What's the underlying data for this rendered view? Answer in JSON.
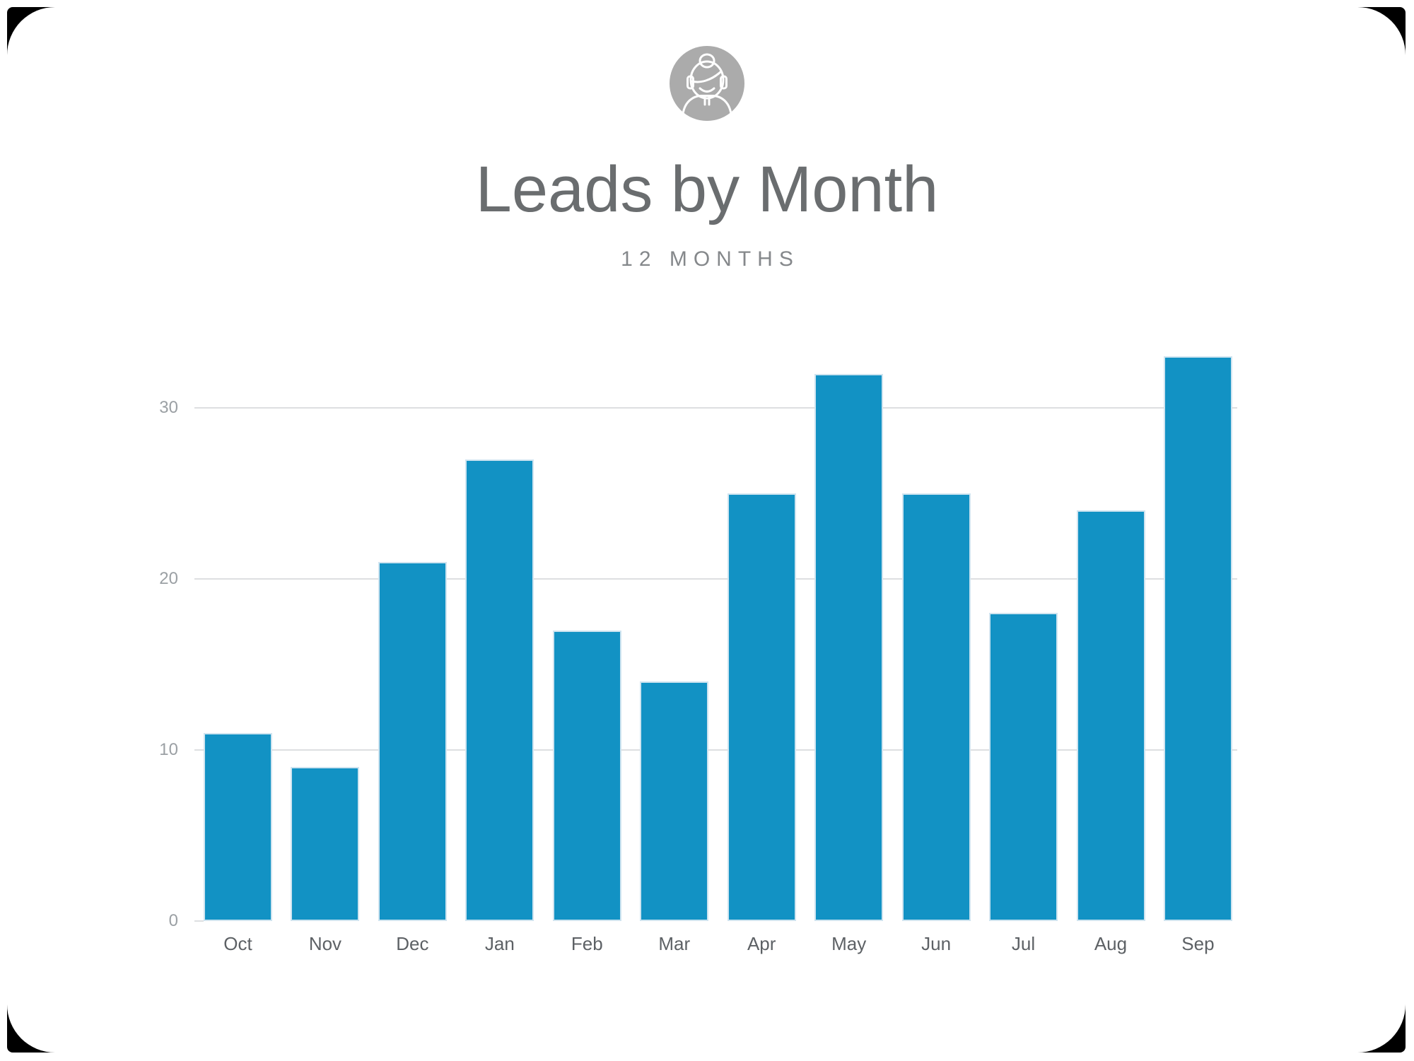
{
  "header": {
    "avatar_icon": "support-agent-icon",
    "title": "Leads by Month",
    "subtitle": "12 MONTHS"
  },
  "chart_data": {
    "type": "bar",
    "title": "Leads by Month",
    "subtitle": "12 MONTHS",
    "categories": [
      "Oct",
      "Nov",
      "Dec",
      "Jan",
      "Feb",
      "Mar",
      "Apr",
      "May",
      "Jun",
      "Jul",
      "Aug",
      "Sep"
    ],
    "values": [
      11,
      9,
      21,
      27,
      17,
      14,
      25,
      32,
      25,
      18,
      24,
      33
    ],
    "series_name": "Leads",
    "xlabel": "",
    "ylabel": "",
    "ylim": [
      0,
      35
    ],
    "yticks": [
      0,
      10,
      20,
      30
    ],
    "ytick_labels": [
      "0",
      "10",
      "20",
      "30"
    ],
    "grid": "horizontal",
    "legend": "none",
    "bar_color": "#1292c4"
  },
  "colors": {
    "background": "#ffffff",
    "corner_frame": "#000000",
    "bar": "#1292c4",
    "bar_edge": "#cfe4f0",
    "title_text": "#6a6d6f",
    "subtitle_text": "#85888b",
    "y_tick_text": "#9ba0a4",
    "x_tick_text": "#5d6165",
    "gridline": "#dddfe1",
    "avatar_background": "#ababab",
    "avatar_stroke": "#ffffff"
  }
}
